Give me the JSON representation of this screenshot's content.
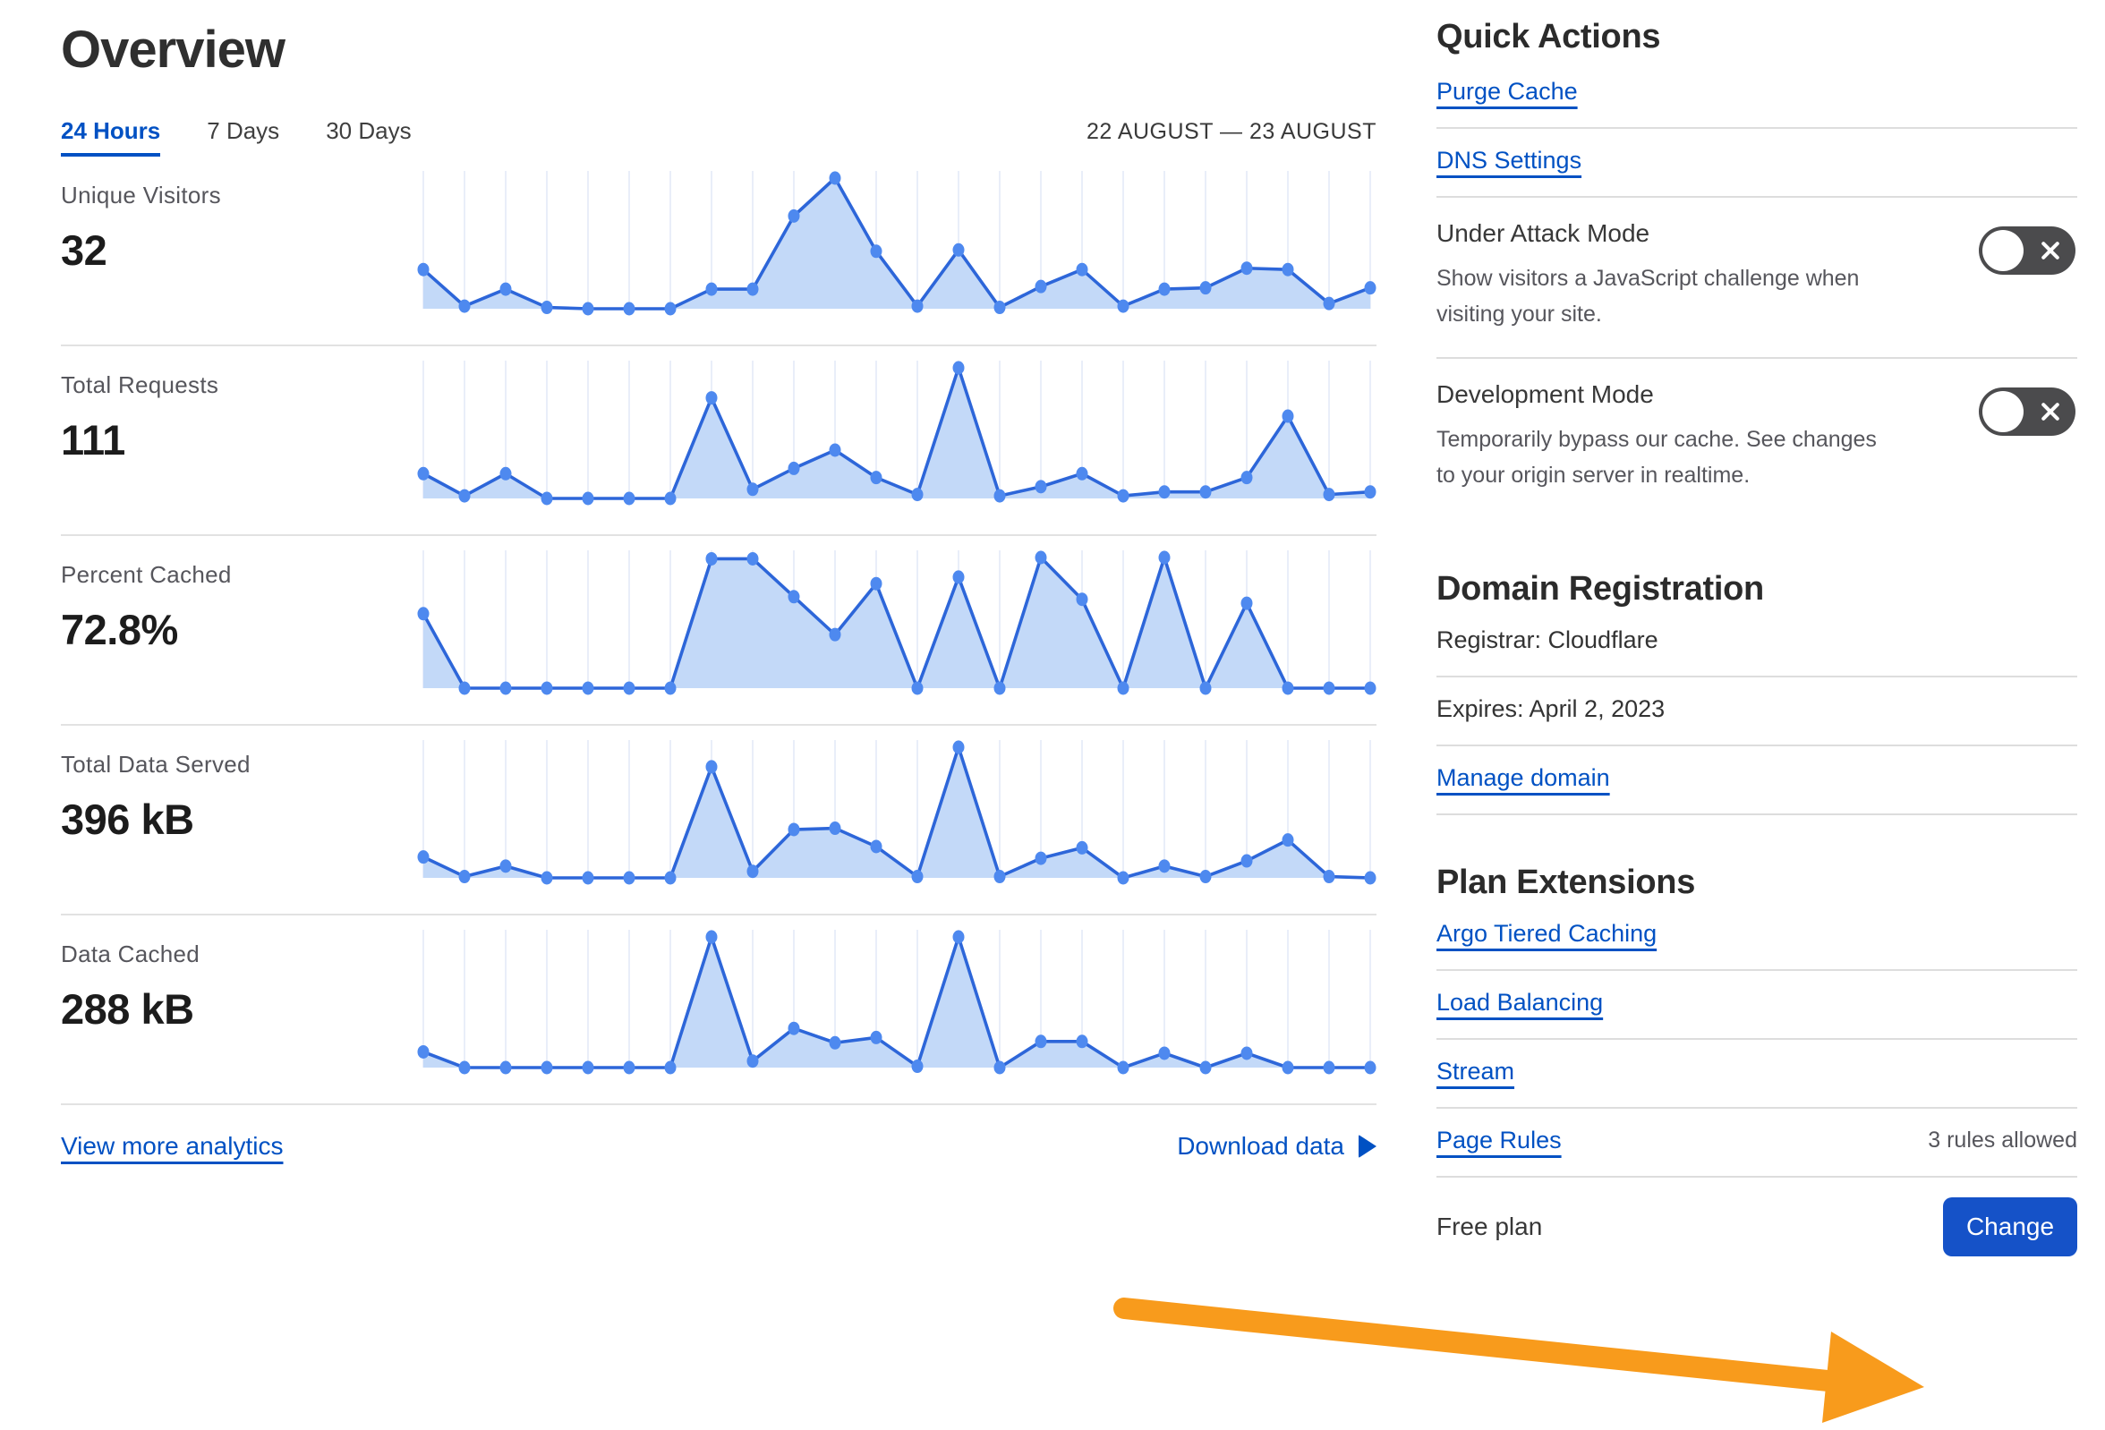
{
  "page": {
    "title": "Overview"
  },
  "tabs": {
    "hours24": "24 Hours",
    "days7": "7 Days",
    "days30": "30 Days",
    "date_range": "22 AUGUST — 23 AUGUST"
  },
  "chart_data": [
    {
      "type": "area",
      "title": "Unique Visitors",
      "display_value": "32",
      "x_note": "24 hourly points, 22 Aug – 23 Aug, no axis labels shown",
      "scale": "relative height 0-100 (unlabeled sparkline)",
      "values": [
        30,
        2,
        15,
        1,
        0,
        0,
        0,
        15,
        15,
        71,
        100,
        44,
        2,
        45,
        1,
        17,
        30,
        2,
        15,
        16,
        31,
        30,
        4,
        16
      ]
    },
    {
      "type": "area",
      "title": "Total Requests",
      "display_value": "111",
      "x_note": "24 hourly points, 22 Aug – 23 Aug, no axis labels shown",
      "scale": "relative height 0-100 (unlabeled sparkline)",
      "values": [
        19,
        2,
        19,
        0,
        0,
        0,
        0,
        77,
        7,
        23,
        37,
        16,
        3,
        100,
        2,
        9,
        19,
        2,
        5,
        5,
        16,
        63,
        3,
        5
      ]
    },
    {
      "type": "area",
      "title": "Percent Cached",
      "display_value": "72.8%",
      "x_note": "24 hourly points, 22 Aug – 23 Aug, no axis labels shown",
      "scale": "approximate percent cached per hour",
      "values": [
        57,
        0,
        0,
        0,
        0,
        0,
        0,
        99,
        99,
        70,
        41,
        80,
        0,
        85,
        0,
        100,
        68,
        0,
        100,
        0,
        65,
        0,
        0,
        0
      ]
    },
    {
      "type": "area",
      "title": "Total Data Served",
      "display_value": "396 kB",
      "x_note": "24 hourly points, 22 Aug – 23 Aug, no axis labels shown",
      "scale": "relative height 0-100 (unlabeled sparkline)",
      "values": [
        16,
        1,
        9,
        0,
        0,
        0,
        0,
        85,
        5,
        37,
        38,
        24,
        1,
        100,
        1,
        15,
        23,
        0,
        9,
        1,
        13,
        29,
        1,
        0
      ]
    },
    {
      "type": "area",
      "title": "Data Cached",
      "display_value": "288 kB",
      "x_note": "24 hourly points, 22 Aug – 23 Aug, no axis labels shown",
      "scale": "relative height 0-100 (unlabeled sparkline)",
      "values": [
        12,
        0,
        0,
        0,
        0,
        0,
        0,
        100,
        5,
        30,
        19,
        23,
        1,
        100,
        0,
        20,
        20,
        0,
        11,
        0,
        11,
        0,
        0,
        0
      ]
    }
  ],
  "footer_links": {
    "view_more": "View more analytics",
    "download": "Download data"
  },
  "quick_actions": {
    "heading": "Quick Actions",
    "purge_cache": "Purge Cache",
    "dns_settings": "DNS Settings",
    "under_attack": {
      "title": "Under Attack Mode",
      "desc": "Show visitors a JavaScript challenge when visiting your site.",
      "state": "off"
    },
    "development": {
      "title": "Development Mode",
      "desc": "Temporarily bypass our cache. See changes to your origin server in realtime.",
      "state": "off"
    }
  },
  "domain_registration": {
    "heading": "Domain Registration",
    "registrar": "Registrar: Cloudflare",
    "expires": "Expires: April 2, 2023",
    "manage": "Manage domain"
  },
  "plan_extensions": {
    "heading": "Plan Extensions",
    "argo": "Argo Tiered Caching",
    "load_balancing": "Load Balancing",
    "stream": "Stream",
    "page_rules": "Page Rules",
    "page_rules_note": "3 rules allowed"
  },
  "plan": {
    "name": "Free plan",
    "change_label": "Change"
  },
  "colors": {
    "link_blue": "#0051c3",
    "button_blue": "#1552c8",
    "chart_line": "#2d66d9",
    "chart_dot": "#4e89ef",
    "chart_fill": "#c3d9f8",
    "chart_grid": "#e9eef9",
    "toggle_bg": "#4b4b4d",
    "annotation_arrow_orange": "#f89b1c"
  }
}
